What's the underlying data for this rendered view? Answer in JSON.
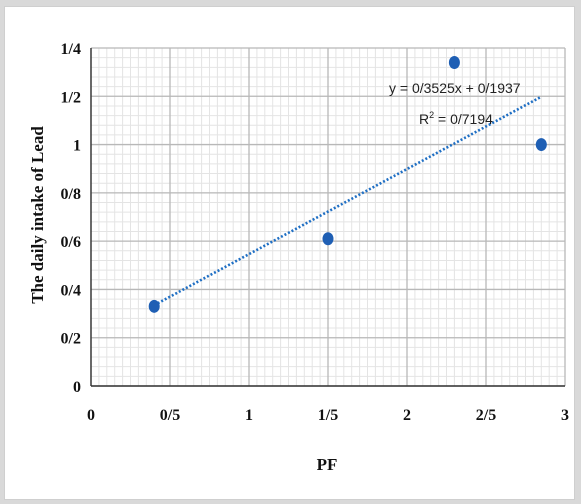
{
  "chart_data": {
    "type": "scatter",
    "xlabel": "PF",
    "ylabel": "The daily intake of Lead",
    "xlim": [
      0,
      3
    ],
    "ylim": [
      0,
      1.4
    ],
    "x_ticks": [
      0,
      0.5,
      1,
      1.5,
      2,
      2.5,
      3
    ],
    "x_tick_labels": [
      "0",
      "0/5",
      "1",
      "1/5",
      "2",
      "2/5",
      "3"
    ],
    "y_ticks": [
      0,
      0.2,
      0.4,
      0.6,
      0.8,
      1.0,
      1.2,
      1.4
    ],
    "y_tick_labels": [
      "0",
      "0/2",
      "0/4",
      "0/6",
      "0/8",
      "1",
      "1/2",
      "1/4"
    ],
    "grid": true,
    "series": [
      {
        "points": [
          {
            "x": 0.4,
            "y": 0.33
          },
          {
            "x": 1.5,
            "y": 0.61
          },
          {
            "x": 2.3,
            "y": 1.34
          },
          {
            "x": 2.85,
            "y": 1.0
          }
        ],
        "color": "#1f5fb4"
      }
    ],
    "trendline": {
      "slope": 0.3525,
      "intercept": 0.1937,
      "x_range": [
        0.4,
        2.85
      ],
      "color": "#1f6fc4",
      "style": "dotted"
    },
    "annotations": {
      "equation": "y = 0/3525x + 0/1937",
      "r2_prefix": "R",
      "r2_sup": "2",
      "r2_value": " = 0/7194"
    }
  }
}
